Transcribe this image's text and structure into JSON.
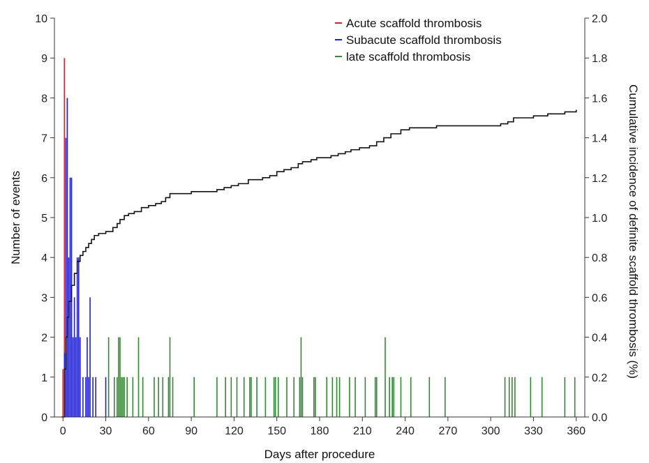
{
  "chart_data": {
    "type": "bar",
    "title": "",
    "xlabel": "Days after procedure",
    "ylabel_left": "Number of events",
    "ylabel_right": "Cumulative incidence of definite scaffold thrombosis (%)",
    "xlim": [
      -6,
      366
    ],
    "ylim_left": [
      0,
      10
    ],
    "ylim_right": [
      0,
      2
    ],
    "x_ticks": [
      0,
      30,
      60,
      90,
      120,
      150,
      180,
      210,
      240,
      270,
      300,
      330,
      360
    ],
    "y_ticks_left": [
      0,
      1,
      2,
      3,
      4,
      5,
      6,
      7,
      8,
      9,
      10
    ],
    "y_ticks_right": [
      "0.0",
      "0.2",
      "0.4",
      "0.6",
      "0.8",
      "1.0",
      "1.2",
      "1.4",
      "1.6",
      "1.8",
      "2.0"
    ],
    "grid": false,
    "legend_position": "top-right",
    "colors": {
      "acute": "#e02020",
      "subacute": "#1a1aee",
      "late": "#2e8b2e",
      "cumulative": "#111111",
      "axis": "#333333"
    },
    "series": [
      {
        "name": "Acute scaffold thrombosis",
        "kind": "bar",
        "color": "#e02020",
        "points": [
          [
            0,
            1.2
          ],
          [
            1,
            9
          ],
          [
            2,
            1.6
          ]
        ]
      },
      {
        "name": "Subacute scaffold thrombosis",
        "kind": "bar",
        "color": "#1a1aee",
        "points": [
          [
            1,
            1.6
          ],
          [
            2,
            7
          ],
          [
            3,
            8
          ],
          [
            4,
            4
          ],
          [
            5,
            6
          ],
          [
            6,
            6
          ],
          [
            7,
            2
          ],
          [
            8,
            3
          ],
          [
            9,
            2
          ],
          [
            10,
            4
          ],
          [
            11,
            4
          ],
          [
            12,
            2
          ],
          [
            14,
            1
          ],
          [
            16,
            1
          ],
          [
            17,
            2
          ],
          [
            18,
            1
          ],
          [
            19,
            3
          ],
          [
            21,
            1
          ],
          [
            23,
            1
          ],
          [
            30,
            1
          ]
        ]
      },
      {
        "name": "late scaffold thrombosis",
        "kind": "bar",
        "color": "#2e8b2e",
        "points": [
          [
            32,
            2
          ],
          [
            36,
            1
          ],
          [
            38,
            1
          ],
          [
            39,
            2
          ],
          [
            40,
            2
          ],
          [
            41,
            1
          ],
          [
            42,
            1
          ],
          [
            43,
            1
          ],
          [
            45,
            1
          ],
          [
            49,
            1
          ],
          [
            53,
            2
          ],
          [
            56,
            1
          ],
          [
            64,
            1
          ],
          [
            67,
            1
          ],
          [
            70,
            1
          ],
          [
            74,
            1
          ],
          [
            75,
            2
          ],
          [
            77,
            1
          ],
          [
            92,
            1
          ],
          [
            108,
            1
          ],
          [
            114,
            1
          ],
          [
            118,
            1
          ],
          [
            122,
            1
          ],
          [
            127,
            1
          ],
          [
            131,
            1
          ],
          [
            132,
            1
          ],
          [
            136,
            1
          ],
          [
            142,
            1
          ],
          [
            148,
            1
          ],
          [
            149,
            1
          ],
          [
            151,
            1
          ],
          [
            157,
            1
          ],
          [
            162,
            1
          ],
          [
            166,
            1
          ],
          [
            167,
            2
          ],
          [
            168,
            1
          ],
          [
            176,
            1
          ],
          [
            177,
            1
          ],
          [
            185,
            1
          ],
          [
            189,
            1
          ],
          [
            192,
            1
          ],
          [
            194,
            1
          ],
          [
            201,
            1
          ],
          [
            205,
            1
          ],
          [
            212,
            1
          ],
          [
            219,
            1
          ],
          [
            220,
            1
          ],
          [
            226,
            2
          ],
          [
            229,
            1
          ],
          [
            231,
            1
          ],
          [
            232,
            1
          ],
          [
            237,
            1
          ],
          [
            244,
            1
          ],
          [
            257,
            1
          ],
          [
            268,
            1
          ],
          [
            310,
            1
          ],
          [
            313,
            1
          ],
          [
            315,
            1
          ],
          [
            317,
            1
          ],
          [
            328,
            1
          ],
          [
            336,
            1
          ],
          [
            352,
            1
          ],
          [
            359,
            1
          ]
        ]
      },
      {
        "name": "",
        "kind": "step",
        "axis": "right",
        "color": "#111111",
        "points": [
          [
            -1,
            0
          ],
          [
            1,
            0.24
          ],
          [
            2,
            0.4
          ],
          [
            3,
            0.5
          ],
          [
            4,
            0.58
          ],
          [
            6,
            0.66
          ],
          [
            8,
            0.72
          ],
          [
            10,
            0.78
          ],
          [
            12,
            0.81
          ],
          [
            14,
            0.83
          ],
          [
            16,
            0.85
          ],
          [
            18,
            0.87
          ],
          [
            20,
            0.89
          ],
          [
            22,
            0.91
          ],
          [
            25,
            0.92
          ],
          [
            30,
            0.93
          ],
          [
            35,
            0.95
          ],
          [
            38,
            0.97
          ],
          [
            40,
            0.99
          ],
          [
            43,
            1.01
          ],
          [
            46,
            1.02
          ],
          [
            50,
            1.03
          ],
          [
            55,
            1.05
          ],
          [
            60,
            1.06
          ],
          [
            65,
            1.07
          ],
          [
            69,
            1.08
          ],
          [
            72,
            1.1
          ],
          [
            75,
            1.12
          ],
          [
            90,
            1.13
          ],
          [
            108,
            1.14
          ],
          [
            113,
            1.15
          ],
          [
            118,
            1.16
          ],
          [
            123,
            1.17
          ],
          [
            130,
            1.19
          ],
          [
            140,
            1.2
          ],
          [
            145,
            1.21
          ],
          [
            150,
            1.23
          ],
          [
            155,
            1.24
          ],
          [
            160,
            1.25
          ],
          [
            165,
            1.27
          ],
          [
            168,
            1.28
          ],
          [
            174,
            1.29
          ],
          [
            178,
            1.3
          ],
          [
            188,
            1.31
          ],
          [
            193,
            1.32
          ],
          [
            198,
            1.33
          ],
          [
            202,
            1.34
          ],
          [
            208,
            1.35
          ],
          [
            215,
            1.36
          ],
          [
            220,
            1.38
          ],
          [
            225,
            1.4
          ],
          [
            230,
            1.42
          ],
          [
            237,
            1.44
          ],
          [
            243,
            1.45
          ],
          [
            262,
            1.46
          ],
          [
            285,
            1.46
          ],
          [
            303,
            1.46
          ],
          [
            307,
            1.47
          ],
          [
            312,
            1.48
          ],
          [
            316,
            1.5
          ],
          [
            330,
            1.51
          ],
          [
            340,
            1.52
          ],
          [
            352,
            1.53
          ],
          [
            360,
            1.54
          ]
        ]
      }
    ]
  }
}
